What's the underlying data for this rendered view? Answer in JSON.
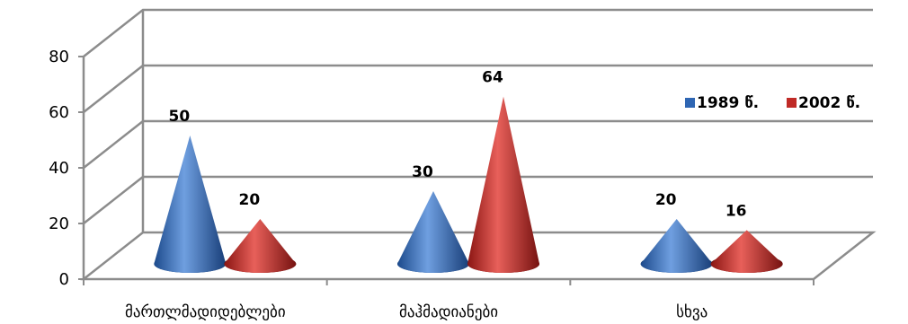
{
  "chart_data": {
    "type": "bar",
    "style": "3d-cone",
    "categories": [
      "მართლმადიდებლები",
      "მაჰმადიანები",
      "სხვა"
    ],
    "series": [
      {
        "name": "1989 წ.",
        "color": "#2f66b3",
        "values": [
          50,
          30,
          20
        ]
      },
      {
        "name": "2002 წ.",
        "color": "#c02a26",
        "values": [
          20,
          64,
          16
        ]
      }
    ],
    "ylim": [
      0,
      80
    ],
    "yticks": [
      0,
      20,
      40,
      60,
      80
    ],
    "grid": true,
    "legend": "right",
    "title": "",
    "xlabel": "",
    "ylabel": ""
  }
}
